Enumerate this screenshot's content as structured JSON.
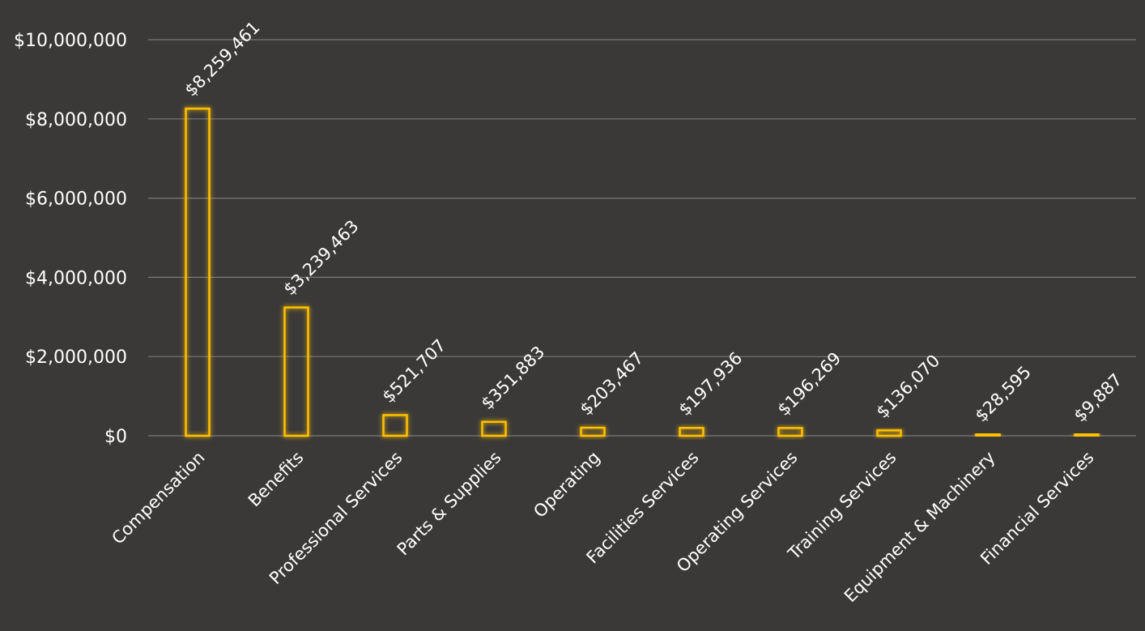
{
  "chart_data": {
    "type": "bar",
    "title": "",
    "xlabel": "",
    "ylabel": "",
    "categories": [
      "Compensation",
      "Benefits",
      "Professional Services",
      "Parts & Supplies",
      "Operating",
      "Facilities Services",
      "Operating Services",
      "Training Services",
      "Equipment & Machinery",
      "Financial Services"
    ],
    "values": [
      8259461,
      3239463,
      521707,
      351883,
      203467,
      197936,
      196269,
      136070,
      28595,
      9887
    ],
    "data_labels": [
      "$8,259,461",
      "$3,239,463",
      "$521,707",
      "$351,883",
      "$203,467",
      "$197,936",
      "$196,269",
      "$136,070",
      "$28,595",
      "$9,887"
    ],
    "ylim": [
      0,
      10000000
    ],
    "yticks": [
      0,
      2000000,
      4000000,
      6000000,
      8000000,
      10000000
    ],
    "ytick_labels": [
      "$0",
      "$2,000,000",
      "$4,000,000",
      "$6,000,000",
      "$8,000,000",
      "$10,000,000"
    ],
    "grid": true,
    "legend": "none",
    "colors": {
      "background": "#3a3938",
      "bar_outline": "#ffc000",
      "gridline": "#7a7978",
      "text": "#ffffff"
    }
  }
}
